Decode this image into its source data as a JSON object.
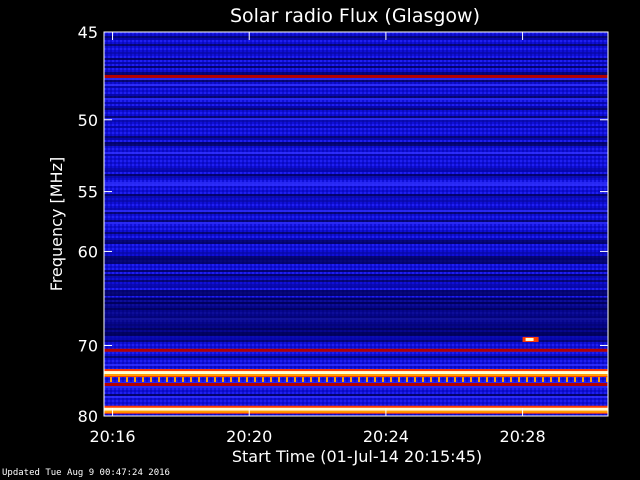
{
  "chart_data": {
    "type": "heatmap",
    "title": "Solar radio Flux (Glasgow)",
    "xlabel": "Start Time (01-Jul-14 20:15:45)",
    "ylabel": "Frequency [MHz]",
    "x_tick_labels": [
      "20:16",
      "20:20",
      "20:24",
      "20:28"
    ],
    "x_ticks_minutes": [
      16,
      20,
      24,
      28
    ],
    "xlim_minutes": [
      15.75,
      30.5
    ],
    "y_tick_labels": [
      "45",
      "50",
      "55",
      "60",
      "70",
      "80"
    ],
    "y_ticks_mhz": [
      45,
      50,
      55,
      60,
      70,
      80
    ],
    "ylim_mhz": [
      45,
      80
    ],
    "y_scale": "reciprocal (1/f)",
    "colormap": [
      "#000050",
      "#0000c8",
      "#3232ff",
      "#b40000",
      "#ff3c00",
      "#ffa000",
      "#ffffd2"
    ],
    "bright_bands_mhz": [
      {
        "mhz": 47.4,
        "level": "red"
      },
      {
        "mhz": 70.6,
        "level": "red"
      },
      {
        "mhz": 73.6,
        "level": "yellow"
      },
      {
        "mhz": 75.2,
        "level": "red"
      },
      {
        "mhz": 79.0,
        "level": "yellow"
      }
    ],
    "bursts": [
      {
        "time": "20:28",
        "mhz": 69.2
      }
    ]
  },
  "footer": {
    "updated_text": "Updated Tue Aug  9 00:47:24 2016"
  }
}
